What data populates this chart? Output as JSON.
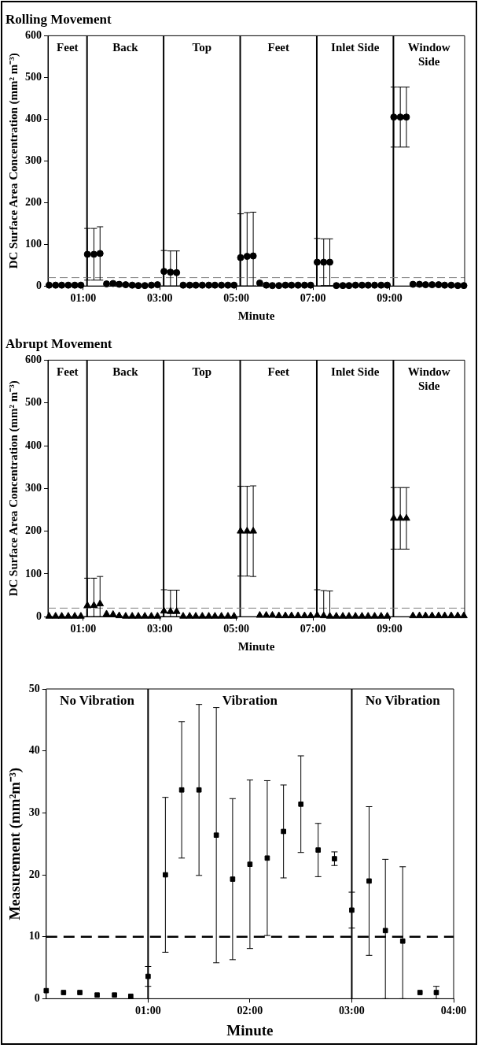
{
  "chart_data": [
    {
      "type": "scatter",
      "title": "Rolling Movement",
      "xlabel": "Minute",
      "ylabel": "DC Surface Area Concentration (mm² m⁻³)",
      "marker": "circle",
      "color": "#000000",
      "x": [
        0.11,
        0.28,
        0.44,
        0.61,
        0.78,
        0.94,
        1.11,
        1.28,
        1.44,
        1.61,
        1.78,
        1.94,
        2.11,
        2.28,
        2.44,
        2.61,
        2.78,
        2.94,
        3.11,
        3.28,
        3.44,
        3.61,
        3.78,
        3.94,
        4.11,
        4.28,
        4.44,
        4.61,
        4.78,
        4.94,
        5.11,
        5.28,
        5.44,
        5.61,
        5.78,
        5.94,
        6.11,
        6.28,
        6.44,
        6.61,
        6.78,
        6.94,
        7.11,
        7.28,
        7.44,
        7.61,
        7.78,
        7.94,
        8.11,
        8.28,
        8.44,
        8.61,
        8.78,
        8.94,
        9.11,
        9.28,
        9.44,
        9.61,
        9.78,
        9.94,
        10.11,
        10.28,
        10.44,
        10.61,
        10.78,
        10.94
      ],
      "values": [
        2,
        2,
        2,
        2,
        2,
        2,
        76,
        76,
        78,
        5,
        6,
        4,
        3,
        2,
        1,
        1,
        2,
        3,
        35,
        33,
        32,
        2,
        2,
        2,
        2,
        2,
        2,
        2,
        2,
        2,
        68,
        71,
        72,
        7,
        2,
        1,
        1,
        2,
        2,
        2,
        2,
        2,
        57,
        57,
        57,
        1,
        1,
        1,
        2,
        2,
        2,
        2,
        2,
        2,
        405,
        405,
        405,
        4,
        4,
        3,
        3,
        3,
        2,
        2,
        1,
        1
      ],
      "errors": [
        null,
        null,
        null,
        null,
        null,
        null,
        62,
        62,
        64,
        null,
        null,
        null,
        null,
        null,
        null,
        null,
        null,
        null,
        [
          0,
          85
        ],
        [
          0,
          84
        ],
        [
          0,
          84
        ],
        null,
        null,
        null,
        null,
        null,
        null,
        null,
        null,
        null,
        [
          0,
          173
        ],
        [
          0,
          176
        ],
        [
          0,
          177
        ],
        null,
        null,
        null,
        null,
        null,
        null,
        null,
        null,
        null,
        57,
        56,
        56,
        null,
        null,
        null,
        null,
        null,
        null,
        null,
        null,
        null,
        72,
        72,
        72,
        null,
        null,
        null,
        null,
        null,
        null,
        null,
        null,
        null
      ],
      "xlim": [
        0.08,
        10.96
      ],
      "xticks": [
        {
          "value": 1,
          "label": "01:00"
        },
        {
          "value": 3,
          "label": "03:00"
        },
        {
          "value": 5,
          "label": "05:00"
        },
        {
          "value": 7,
          "label": "07:00"
        },
        {
          "value": 9,
          "label": "09:00"
        }
      ],
      "ylim": [
        0,
        600
      ],
      "yticks": [
        0,
        100,
        200,
        300,
        400,
        500,
        600
      ],
      "ref_lines": [
        {
          "axis": "x",
          "value": 1.1,
          "color": "#000000"
        },
        {
          "axis": "x",
          "value": 3.1,
          "color": "#000000"
        },
        {
          "axis": "x",
          "value": 5.1,
          "color": "#000000"
        },
        {
          "axis": "x",
          "value": 7.1,
          "color": "#000000"
        },
        {
          "axis": "x",
          "value": 9.1,
          "color": "#000000"
        },
        {
          "axis": "y",
          "value": 20,
          "color": "#808080",
          "line_style": "dashed"
        }
      ],
      "annotations": [
        "Feet",
        "Back",
        "Top",
        "Feet",
        "Inlet Side",
        "Window Side"
      ]
    },
    {
      "type": "scatter",
      "title": "Abrupt Movement",
      "xlabel": "Minute",
      "ylabel": "DC Surface Area Concentration (mm² m⁻³)",
      "marker": "triangle",
      "color": "#000000",
      "x": [
        0.11,
        0.28,
        0.44,
        0.61,
        0.78,
        0.94,
        1.11,
        1.28,
        1.44,
        1.61,
        1.78,
        1.94,
        2.11,
        2.28,
        2.44,
        2.61,
        2.78,
        2.94,
        3.11,
        3.28,
        3.44,
        3.61,
        3.78,
        3.94,
        4.11,
        4.28,
        4.44,
        4.61,
        4.78,
        4.94,
        5.11,
        5.28,
        5.44,
        5.61,
        5.78,
        5.94,
        6.11,
        6.28,
        6.44,
        6.61,
        6.78,
        6.94,
        7.11,
        7.28,
        7.44,
        7.61,
        7.78,
        7.94,
        8.11,
        8.28,
        8.44,
        8.61,
        8.78,
        8.94,
        9.11,
        9.28,
        9.44,
        9.61,
        9.78,
        9.94,
        10.11,
        10.28,
        10.44,
        10.61,
        10.78,
        10.94
      ],
      "values": [
        1,
        1,
        1,
        1,
        1,
        1,
        26,
        26,
        30,
        6,
        5,
        2,
        1,
        1,
        1,
        1,
        1,
        1,
        13,
        12,
        12,
        1,
        1,
        1,
        1,
        1,
        1,
        1,
        1,
        1,
        200,
        200,
        200,
        3,
        3,
        3,
        2,
        2,
        2,
        2,
        2,
        2,
        3,
        2,
        1,
        1,
        1,
        1,
        1,
        1,
        1,
        1,
        1,
        1,
        230,
        230,
        230,
        2,
        2,
        2,
        2,
        2,
        2,
        2,
        2,
        2
      ],
      "errors": [
        null,
        null,
        null,
        null,
        null,
        null,
        [
          0,
          90
        ],
        [
          0,
          90
        ],
        [
          0,
          94
        ],
        null,
        null,
        null,
        null,
        null,
        null,
        null,
        null,
        null,
        [
          0,
          63
        ],
        [
          0,
          62
        ],
        [
          0,
          62
        ],
        null,
        null,
        null,
        null,
        null,
        null,
        null,
        null,
        null,
        105,
        105,
        106,
        null,
        null,
        null,
        null,
        null,
        null,
        null,
        null,
        null,
        [
          0,
          63
        ],
        [
          0,
          61
        ],
        [
          0,
          60
        ],
        null,
        null,
        null,
        null,
        null,
        null,
        null,
        null,
        null,
        72,
        72,
        72,
        null,
        null,
        null,
        null,
        null,
        null,
        null,
        null,
        null
      ],
      "xlim": [
        0.08,
        10.96
      ],
      "xticks": [
        {
          "value": 1,
          "label": "01:00"
        },
        {
          "value": 3,
          "label": "03:00"
        },
        {
          "value": 5,
          "label": "05:00"
        },
        {
          "value": 7,
          "label": "07:00"
        },
        {
          "value": 9,
          "label": "09:00"
        }
      ],
      "ylim": [
        0,
        600
      ],
      "yticks": [
        0,
        100,
        200,
        300,
        400,
        500,
        600
      ],
      "ref_lines": [
        {
          "axis": "x",
          "value": 1.1,
          "color": "#000000"
        },
        {
          "axis": "x",
          "value": 3.1,
          "color": "#000000"
        },
        {
          "axis": "x",
          "value": 5.1,
          "color": "#000000"
        },
        {
          "axis": "x",
          "value": 7.1,
          "color": "#000000"
        },
        {
          "axis": "x",
          "value": 9.1,
          "color": "#000000"
        },
        {
          "axis": "y",
          "value": 20,
          "color": "#808080",
          "line_style": "dashed"
        }
      ],
      "annotations": [
        "Feet",
        "Back",
        "Top",
        "Feet",
        "Inlet Side",
        "Window Side"
      ]
    },
    {
      "type": "scatter",
      "xlabel": "Minute",
      "ylabel": "Measurement (mm²m⁻³)",
      "marker": "square",
      "color": "#000000",
      "x": [
        0,
        0.17,
        0.33,
        0.5,
        0.67,
        0.83,
        1,
        1.17,
        1.33,
        1.5,
        1.67,
        1.83,
        2,
        2.17,
        2.33,
        2.5,
        2.67,
        2.83,
        3,
        3.17,
        3.33,
        3.5,
        3.67,
        3.83
      ],
      "values": [
        1.3,
        1.0,
        1.0,
        0.6,
        0.6,
        0.4,
        3.6,
        20.0,
        33.7,
        33.7,
        26.4,
        19.3,
        21.7,
        22.7,
        27.0,
        31.4,
        24.0,
        22.6,
        14.3,
        19.0,
        11.0,
        9.3,
        1.0,
        1.0
      ],
      "errors": [
        null,
        null,
        null,
        null,
        null,
        null,
        1.6,
        12.5,
        11,
        13.8,
        20.6,
        13,
        13.6,
        12.5,
        7.5,
        7.8,
        4.3,
        1.1,
        2.9,
        12,
        [
          0,
          22.5
        ],
        [
          0,
          21.3
        ],
        null,
        1.0
      ],
      "xlim": [
        0,
        4
      ],
      "xticks": [
        {
          "value": 1,
          "label": "01:00"
        },
        {
          "value": 2,
          "label": "02:00"
        },
        {
          "value": 3,
          "label": "03:00"
        },
        {
          "value": 4,
          "label": "04:00"
        }
      ],
      "ylim": [
        0,
        50
      ],
      "yticks": [
        0,
        10,
        20,
        30,
        40,
        50
      ],
      "ref_lines": [
        {
          "axis": "x",
          "value": 1,
          "color": "#000000"
        },
        {
          "axis": "x",
          "value": 3,
          "color": "#000000"
        },
        {
          "axis": "y",
          "value": 10,
          "color": "#000000",
          "line_style": "dashed"
        }
      ],
      "annotations": [
        "No Vibration",
        "Vibration",
        "No Vibration"
      ]
    }
  ]
}
